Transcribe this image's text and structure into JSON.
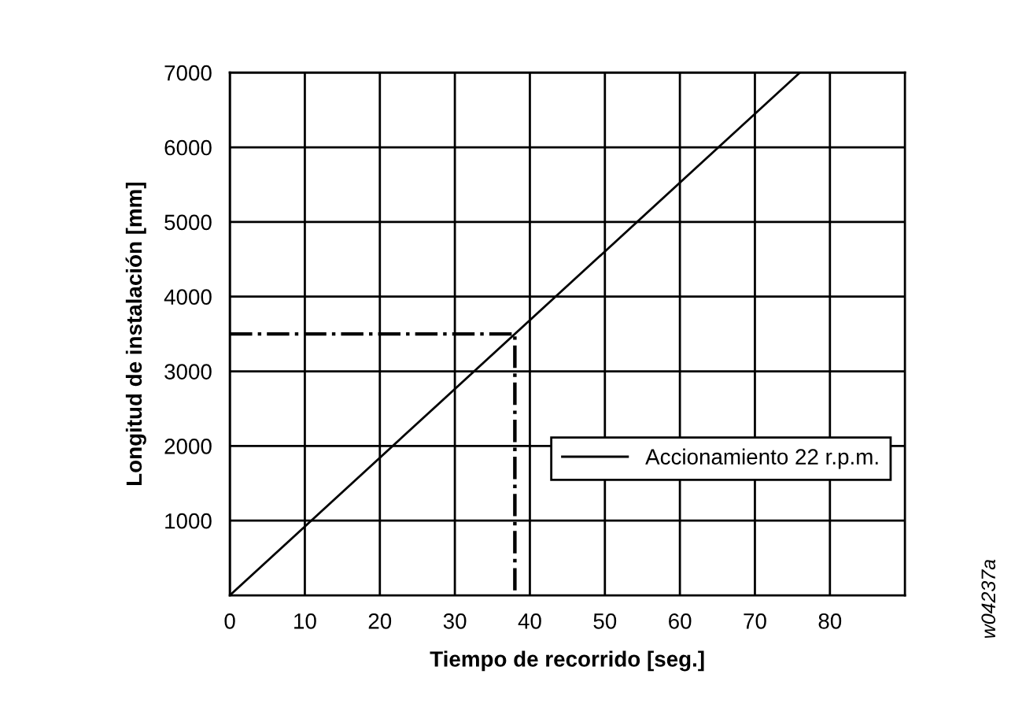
{
  "chart_data": {
    "type": "line",
    "xlabel": "Tiempo de recorrido [seg.]",
    "ylabel": "Longitud de instalación [mm]",
    "series": [
      {
        "name": "Accionamiento 22 r.p.m.",
        "color": "#000000",
        "x": [
          0,
          76
        ],
        "values": [
          0,
          7000
        ],
        "line_style": "solid"
      },
      {
        "color": "#000000",
        "x": [
          0,
          38,
          38
        ],
        "values": [
          3500,
          3500,
          0
        ],
        "line_style": "dashdot"
      }
    ],
    "xlim": [
      0,
      90
    ],
    "xticks": [
      0,
      10,
      20,
      30,
      40,
      50,
      60,
      70,
      80
    ],
    "ylim": [
      0,
      7000
    ],
    "yticks": [
      1000,
      2000,
      3000,
      4000,
      5000,
      6000,
      7000
    ],
    "grid": true,
    "legend": "lower right",
    "annotations": [
      "w04237a"
    ]
  }
}
